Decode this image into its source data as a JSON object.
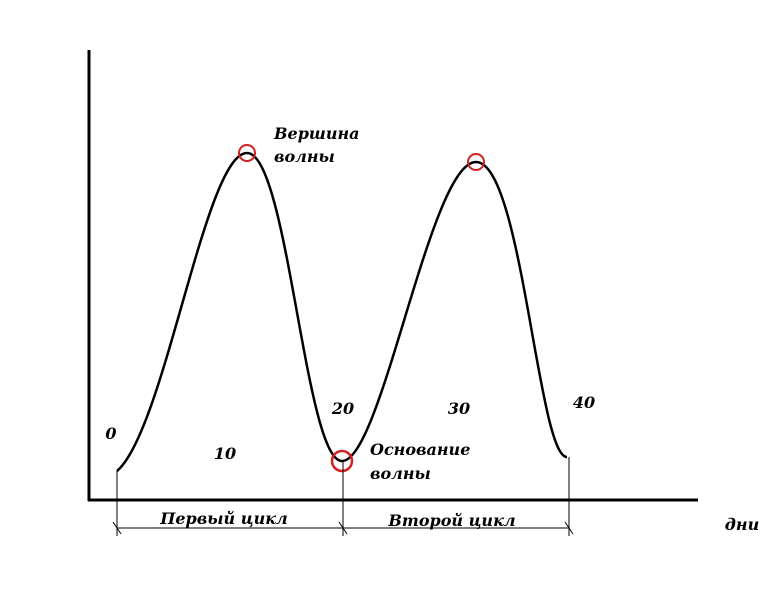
{
  "diagram": {
    "day_labels": [
      "0",
      "10",
      "20",
      "30",
      "40"
    ],
    "peak_label": [
      "Вершина",
      "волны"
    ],
    "trough_label": [
      "Основание",
      "волны"
    ],
    "cycles": [
      "Первый цикл",
      "Второй цикл"
    ],
    "x_axis_label": "дни"
  }
}
